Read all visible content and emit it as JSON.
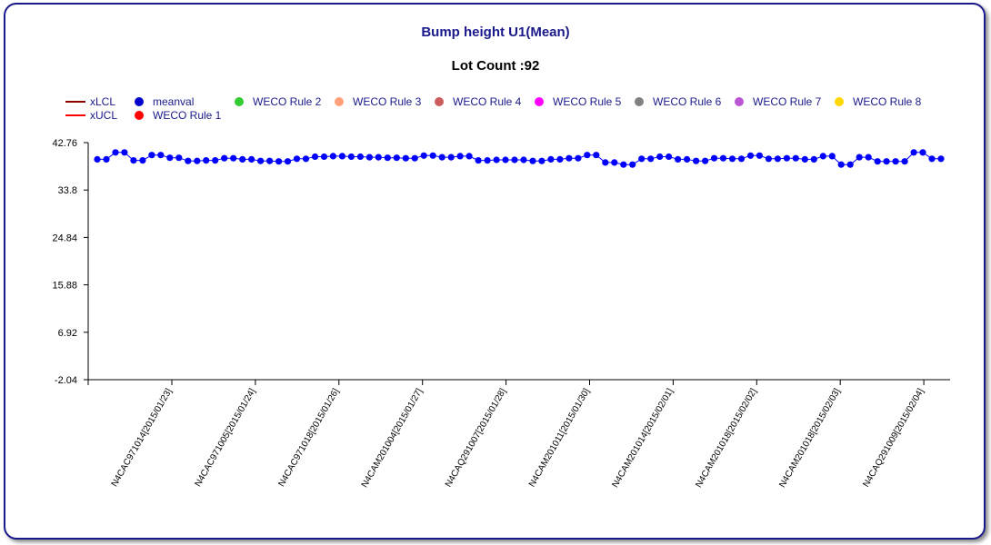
{
  "chart_data": {
    "type": "line",
    "title": "Bump height U1(Mean)",
    "subtitle": "Lot Count :92",
    "legend": [
      {
        "name": "xLCL",
        "kind": "line",
        "color": "#8b0000"
      },
      {
        "name": "xUCL",
        "kind": "line",
        "color": "#ff0000"
      },
      {
        "name": "meanval",
        "kind": "dot",
        "color": "#0000cc"
      },
      {
        "name": "WECO Rule 1",
        "kind": "dot",
        "color": "#ff0000"
      },
      {
        "name": "WECO Rule 2",
        "kind": "dot",
        "color": "#33cc33"
      },
      {
        "name": "WECO Rule 3",
        "kind": "dot",
        "color": "#ffa07a"
      },
      {
        "name": "WECO Rule 4",
        "kind": "dot",
        "color": "#cd5c5c"
      },
      {
        "name": "WECO Rule 5",
        "kind": "dot",
        "color": "#ff00ff"
      },
      {
        "name": "WECO Rule 6",
        "kind": "dot",
        "color": "#808080"
      },
      {
        "name": "WECO Rule 7",
        "kind": "dot",
        "color": "#ba55d3"
      },
      {
        "name": "WECO Rule 8",
        "kind": "dot",
        "color": "#ffd700"
      }
    ],
    "yticks": [
      "42.76",
      "33.8",
      "24.84",
      "15.88",
      "6.92",
      "-2.04"
    ],
    "ylim": [
      -2.04,
      42.76
    ],
    "xticks": [
      "N4CAC971014[2015/01/23]",
      "N4CAC971005[2015/01/24]",
      "N4CAC971018[2015/01/26]",
      "N4CAM201004[2015/01/27]",
      "N4CAQ291007[2015/01/28]",
      "N4CAM201011[2015/01/30]",
      "N4CAM201014[2015/02/01]",
      "N4CAM201018[2015/02/02]",
      "N4CAM201018[2015/02/03]",
      "N4CAQ291009[2015/02/04]"
    ],
    "series": [
      {
        "name": "meanval",
        "color": "#0000ff",
        "values": [
          39.6,
          39.6,
          40.9,
          40.9,
          39.4,
          39.4,
          40.4,
          40.4,
          39.9,
          39.9,
          39.3,
          39.3,
          39.4,
          39.4,
          39.8,
          39.8,
          39.6,
          39.6,
          39.3,
          39.3,
          39.2,
          39.2,
          39.7,
          39.7,
          40.1,
          40.1,
          40.2,
          40.2,
          40.1,
          40.1,
          40.0,
          40.0,
          39.9,
          39.9,
          39.8,
          39.8,
          40.3,
          40.3,
          40.0,
          40.0,
          40.2,
          40.2,
          39.4,
          39.4,
          39.5,
          39.5,
          39.5,
          39.5,
          39.3,
          39.3,
          39.6,
          39.6,
          39.8,
          39.8,
          40.4,
          40.4,
          39.0,
          39.0,
          38.6,
          38.6,
          39.7,
          39.7,
          40.1,
          40.1,
          39.6,
          39.6,
          39.3,
          39.3,
          39.8,
          39.8,
          39.7,
          39.7,
          40.3,
          40.3,
          39.7,
          39.7,
          39.8,
          39.8,
          39.6,
          39.6,
          40.2,
          40.2,
          38.6,
          38.6,
          40.0,
          40.0,
          39.2,
          39.2,
          39.2,
          39.2,
          40.9,
          40.9,
          39.7,
          39.7
        ]
      }
    ]
  }
}
